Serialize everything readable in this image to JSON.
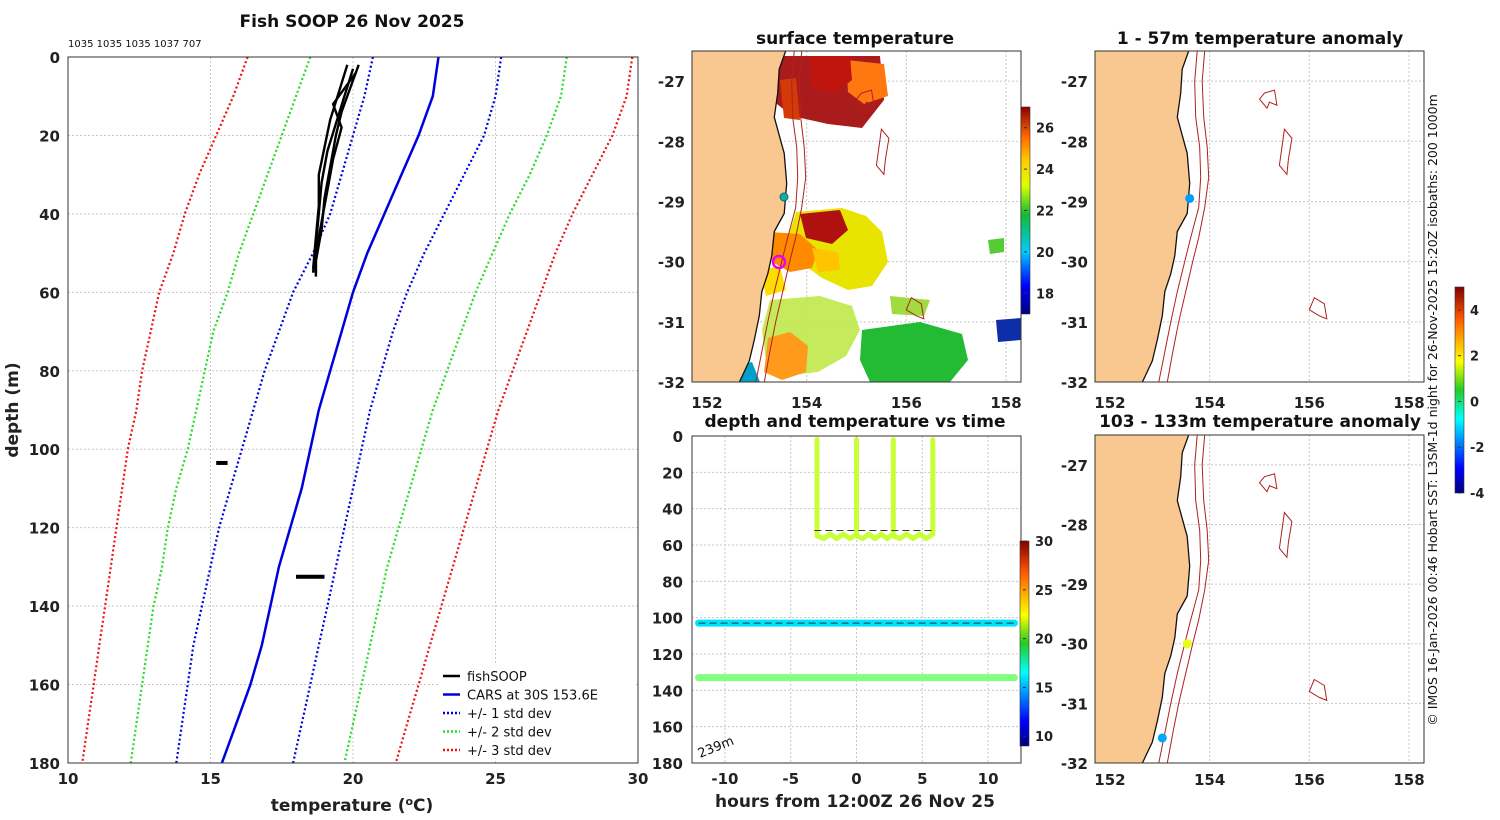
{
  "main_panel": {
    "title": "Fish SOOP 26 Nov 2025",
    "counts_label": "1035 1035 1035 1037 707"
  },
  "credit": "© IMOS 16-Jan-2026 00:46 Hobart SST: L3SM-1d night for 26-Nov-2025 15:20Z isobaths: 200  1000m",
  "map_common": {
    "lon_range": [
      151.7,
      158.3
    ],
    "lat_range": [
      -32,
      -26.5
    ],
    "lon_ticks": [
      "152",
      "154",
      "156",
      "158"
    ],
    "lat_ticks": [
      "-27",
      "-28",
      "-29",
      "-30",
      "-31",
      "-32"
    ],
    "isobath_labels": [
      "200",
      "1000m"
    ]
  },
  "colorbars": {
    "sst": {
      "ticks": [
        "26",
        "24",
        "22",
        "20",
        "18"
      ]
    },
    "time_series": {
      "ticks": [
        "30",
        "25",
        "20",
        "15",
        "10"
      ]
    },
    "anomaly": {
      "ticks": [
        "4",
        "2",
        "0",
        "-2",
        "-4"
      ]
    }
  },
  "chart_data": [
    {
      "type": "line",
      "title": "Fish SOOP 26 Nov 2025",
      "xlabel": "temperature (°C)",
      "ylabel": "depth (m)",
      "xlim": [
        10,
        30
      ],
      "ylim": [
        180,
        0
      ],
      "x_ticks": [
        "10",
        "15",
        "20",
        "25",
        "30"
      ],
      "y_ticks": [
        "0",
        "20",
        "40",
        "60",
        "80",
        "100",
        "120",
        "140",
        "160",
        "180"
      ],
      "legend": [
        "fishSOOP",
        "CARS at 30S 153.6E",
        "+/- 1 std dev",
        "+/- 2 std dev",
        "+/- 3 std dev"
      ],
      "legend_position": "bottom-right",
      "depths": [
        0,
        10,
        20,
        30,
        40,
        50,
        60,
        70,
        80,
        90,
        100,
        110,
        120,
        130,
        140,
        150,
        160,
        170,
        180
      ],
      "series": [
        {
          "name": "CARS at 30S 153.6E",
          "color": "#0000dd",
          "style": "solid",
          "temps": [
            23.0,
            22.8,
            22.3,
            21.7,
            21.1,
            20.5,
            20.0,
            19.6,
            19.2,
            18.8,
            18.5,
            18.2,
            17.8,
            17.4,
            17.1,
            16.8,
            16.4,
            15.9,
            15.4
          ]
        },
        {
          "name": "- 1 std dev",
          "color": "#0000dd",
          "style": "dotted",
          "temps": [
            20.7,
            20.4,
            20.0,
            19.6,
            19.2,
            18.6,
            17.9,
            17.4,
            16.9,
            16.5,
            16.1,
            15.7,
            15.3,
            15.0,
            14.7,
            14.4,
            14.2,
            14.0,
            13.8
          ]
        },
        {
          "name": "+ 1 std dev",
          "color": "#0000dd",
          "style": "dotted",
          "temps": [
            25.2,
            25.0,
            24.6,
            23.9,
            23.2,
            22.5,
            21.9,
            21.4,
            21.0,
            20.6,
            20.3,
            20.0,
            19.7,
            19.4,
            19.1,
            18.8,
            18.5,
            18.2,
            17.9
          ]
        },
        {
          "name": "- 2 std dev",
          "color": "#22dd22",
          "style": "dotted",
          "temps": [
            18.5,
            18.0,
            17.5,
            17.0,
            16.5,
            16.0,
            15.6,
            15.1,
            14.8,
            14.5,
            14.2,
            13.8,
            13.5,
            13.3,
            13.0,
            12.8,
            12.6,
            12.4,
            12.2
          ]
        },
        {
          "name": "+ 2 std dev",
          "color": "#22dd22",
          "style": "dotted",
          "temps": [
            27.5,
            27.3,
            26.8,
            26.2,
            25.5,
            24.9,
            24.3,
            23.8,
            23.3,
            22.8,
            22.4,
            22.0,
            21.6,
            21.2,
            20.9,
            20.6,
            20.3,
            20.0,
            19.7
          ]
        },
        {
          "name": "- 3 std dev",
          "color": "#ee1111",
          "style": "dotted",
          "temps": [
            16.3,
            15.8,
            15.2,
            14.6,
            14.1,
            13.7,
            13.2,
            12.9,
            12.6,
            12.4,
            12.1,
            11.9,
            11.7,
            11.5,
            11.3,
            11.1,
            10.9,
            10.7,
            10.5
          ]
        },
        {
          "name": "+ 3 std dev",
          "color": "#ee1111",
          "style": "dotted",
          "temps": [
            29.8,
            29.6,
            29.1,
            28.4,
            27.7,
            27.1,
            26.6,
            26.1,
            25.6,
            25.1,
            24.7,
            24.3,
            23.9,
            23.5,
            23.1,
            22.7,
            22.3,
            21.9,
            21.5
          ]
        }
      ],
      "fishsoop_profiles": [
        [
          [
            20.2,
            2
          ],
          [
            19.9,
            8
          ],
          [
            19.6,
            14
          ],
          [
            19.4,
            20
          ],
          [
            19.2,
            28
          ],
          [
            19.0,
            36
          ],
          [
            18.9,
            44
          ],
          [
            18.7,
            52
          ],
          [
            18.7,
            56
          ]
        ],
        [
          [
            20.0,
            3
          ],
          [
            19.7,
            10
          ],
          [
            19.4,
            17
          ],
          [
            19.1,
            24
          ],
          [
            18.9,
            32
          ],
          [
            18.8,
            40
          ],
          [
            18.7,
            48
          ],
          [
            18.6,
            55
          ]
        ],
        [
          [
            19.8,
            2
          ],
          [
            19.5,
            9
          ],
          [
            19.2,
            16
          ],
          [
            19.0,
            23
          ],
          [
            18.8,
            30
          ],
          [
            18.8,
            38
          ],
          [
            18.7,
            46
          ],
          [
            18.6,
            54
          ]
        ],
        [
          [
            20.1,
            4
          ],
          [
            19.3,
            12
          ],
          [
            19.6,
            18
          ],
          [
            19.3,
            26
          ],
          [
            19.1,
            34
          ],
          [
            18.9,
            42
          ],
          [
            18.7,
            50
          ],
          [
            18.7,
            55
          ]
        ]
      ],
      "fishsoop_clusters": [
        {
          "temps": [
            15.2,
            15.6
          ],
          "depth": 103.5
        },
        {
          "temps": [
            18.0,
            19.0
          ],
          "depth": 132.5
        }
      ]
    },
    {
      "type": "heatmap",
      "title": "surface temperature",
      "colorbar_range": [
        17,
        27
      ]
    },
    {
      "type": "scatter",
      "title": "depth and temperature vs time",
      "xlabel": "hours from 12:00Z 26 Nov 25",
      "xlim": [
        -12.5,
        12.5
      ],
      "ylim": [
        180,
        0
      ],
      "x_ticks": [
        "-10",
        "-5",
        "0",
        "5",
        "10"
      ],
      "y_ticks": [
        "0",
        "20",
        "40",
        "60",
        "80",
        "100",
        "120",
        "140",
        "160",
        "180"
      ],
      "annotation": "239m",
      "colorbar_range": [
        9,
        30
      ],
      "series": [
        {
          "name": "upper sensor",
          "x_start": -12,
          "x_end": 12,
          "depth": 103,
          "temp": 16.3
        },
        {
          "name": "deep sensor",
          "x_start": -12,
          "x_end": 12,
          "depth": 133,
          "temp": 19.5
        },
        {
          "name": "fishing profiles",
          "temp": 21.0,
          "profile_times": [
            -3.0,
            0.0,
            2.8,
            5.8
          ],
          "bottom_depth": 55
        }
      ],
      "reference_lines": [
        {
          "depth": 103,
          "x_range": [
            -12,
            12
          ]
        },
        {
          "depth": 52,
          "x_range": [
            -3.2,
            6.0
          ]
        }
      ]
    },
    {
      "type": "scatter",
      "title": "1 - 57m temperature anomaly",
      "points": [
        {
          "lon": 153.6,
          "lat": -28.95,
          "anomaly": -1.5
        }
      ]
    },
    {
      "type": "scatter",
      "title": "103 - 133m temperature anomaly",
      "points": [
        {
          "lon": 153.55,
          "lat": -30.0,
          "anomaly": 1.4
        },
        {
          "lon": 153.05,
          "lat": -31.58,
          "anomaly": -1.4
        }
      ],
      "colorbar_range": [
        -4,
        5
      ]
    }
  ]
}
